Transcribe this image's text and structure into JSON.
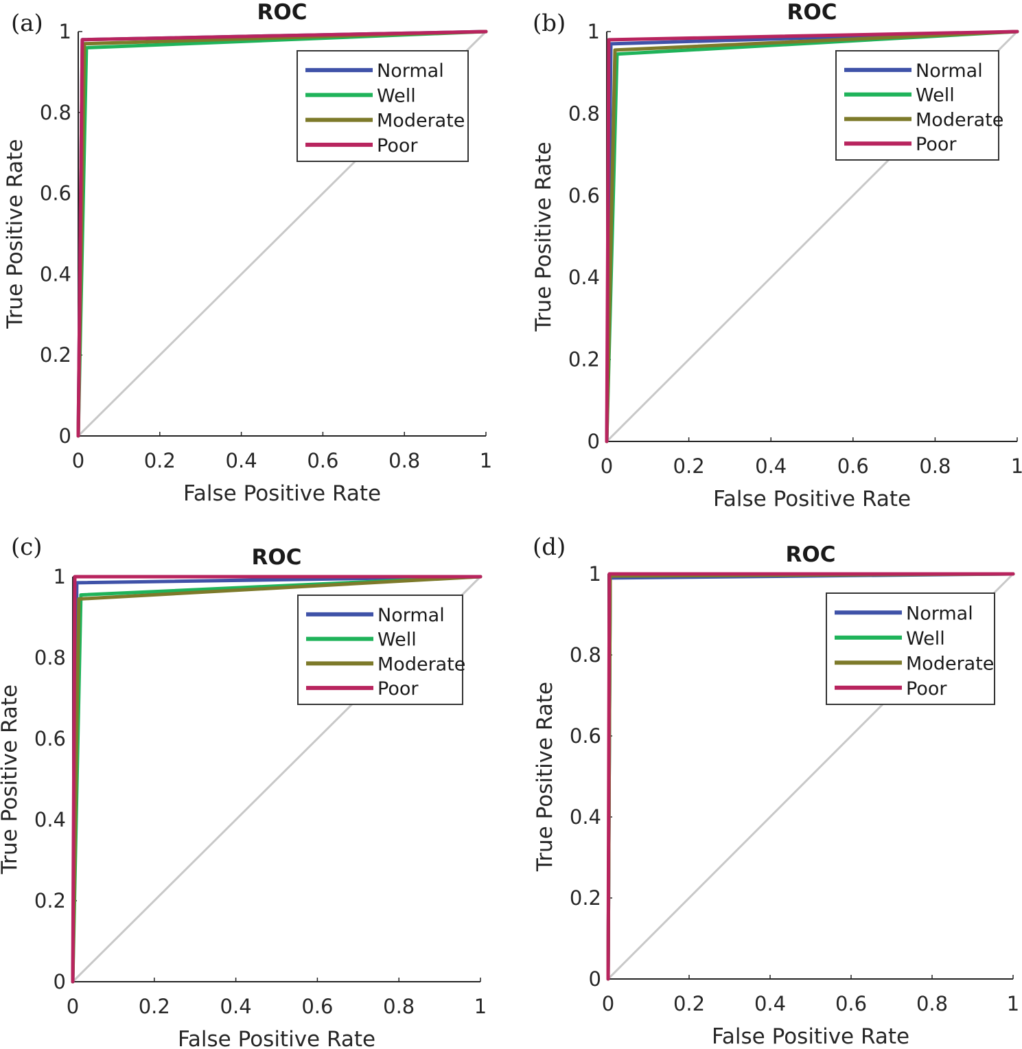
{
  "figure": {
    "colors": {
      "Normal": "#3f52a8",
      "Well": "#1fb35a",
      "Moderate": "#7d7a2a",
      "Poor": "#b8245e",
      "diagonal": "#c8c8c8",
      "axis": "#222222"
    }
  },
  "chart_data": [
    {
      "panel_label": "(a)",
      "type": "line",
      "title": "ROC",
      "xlabel": "False Positive Rate",
      "ylabel": "True Positive Rate",
      "xlim": [
        0,
        1
      ],
      "ylim": [
        0,
        1
      ],
      "xticks": [
        "0",
        "0.2",
        "0.4",
        "0.6",
        "0.8",
        "1"
      ],
      "yticks": [
        "0",
        "0.2",
        "0.4",
        "0.6",
        "0.8",
        "1"
      ],
      "legend_location": "top-right",
      "reference_line": {
        "x": [
          0,
          1
        ],
        "y": [
          0,
          1
        ]
      },
      "series": [
        {
          "name": "Normal",
          "x": [
            0,
            0.01,
            1
          ],
          "y": [
            0,
            0.98,
            1
          ]
        },
        {
          "name": "Well",
          "x": [
            0,
            0.02,
            1
          ],
          "y": [
            0,
            0.96,
            1
          ]
        },
        {
          "name": "Moderate",
          "x": [
            0,
            0.015,
            1
          ],
          "y": [
            0,
            0.97,
            1
          ]
        },
        {
          "name": "Poor",
          "x": [
            0,
            0.01,
            1
          ],
          "y": [
            0,
            0.98,
            1
          ]
        }
      ]
    },
    {
      "panel_label": "(b)",
      "type": "line",
      "title": "ROC",
      "xlabel": "False Positive Rate",
      "ylabel": "True Positive Rate",
      "xlim": [
        0,
        1
      ],
      "ylim": [
        0,
        1
      ],
      "xticks": [
        "0",
        "0.2",
        "0.4",
        "0.6",
        "0.8",
        "1"
      ],
      "yticks": [
        "0",
        "0.2",
        "0.4",
        "0.6",
        "0.8",
        "1"
      ],
      "legend_location": "top-right",
      "reference_line": {
        "x": [
          0,
          1
        ],
        "y": [
          0,
          1
        ]
      },
      "series": [
        {
          "name": "Normal",
          "x": [
            0,
            0.01,
            1
          ],
          "y": [
            0,
            0.97,
            1
          ]
        },
        {
          "name": "Well",
          "x": [
            0,
            0.025,
            1
          ],
          "y": [
            0,
            0.945,
            1
          ]
        },
        {
          "name": "Moderate",
          "x": [
            0,
            0.02,
            1
          ],
          "y": [
            0,
            0.955,
            1
          ]
        },
        {
          "name": "Poor",
          "x": [
            0,
            0.005,
            1
          ],
          "y": [
            0,
            0.98,
            1
          ]
        }
      ]
    },
    {
      "panel_label": "(c)",
      "type": "line",
      "title": "ROC",
      "xlabel": "False Positive Rate",
      "ylabel": "True Positive Rate",
      "xlim": [
        0,
        1
      ],
      "ylim": [
        0,
        1
      ],
      "xticks": [
        "0",
        "0.2",
        "0.4",
        "0.6",
        "0.8",
        "1"
      ],
      "yticks": [
        "0",
        "0.2",
        "0.4",
        "0.6",
        "0.8",
        "1"
      ],
      "legend_location": "top-right",
      "reference_line": {
        "x": [
          0,
          1
        ],
        "y": [
          0,
          1
        ]
      },
      "series": [
        {
          "name": "Normal",
          "x": [
            0,
            0.01,
            1
          ],
          "y": [
            0,
            0.985,
            1
          ]
        },
        {
          "name": "Well",
          "x": [
            0,
            0.02,
            1
          ],
          "y": [
            0,
            0.955,
            1
          ]
        },
        {
          "name": "Moderate",
          "x": [
            0,
            0.015,
            1
          ],
          "y": [
            0,
            0.945,
            1
          ]
        },
        {
          "name": "Poor",
          "x": [
            0,
            0.005,
            1
          ],
          "y": [
            0,
            1.0,
            1
          ]
        }
      ]
    },
    {
      "panel_label": "(d)",
      "type": "line",
      "title": "ROC",
      "xlabel": "False Positive Rate",
      "ylabel": "True Positive Rate",
      "xlim": [
        0,
        1
      ],
      "ylim": [
        0,
        1
      ],
      "xticks": [
        "0",
        "0.2",
        "0.4",
        "0.6",
        "0.8",
        "1"
      ],
      "yticks": [
        "0",
        "0.2",
        "0.4",
        "0.6",
        "0.8",
        "1"
      ],
      "legend_location": "top-right",
      "reference_line": {
        "x": [
          0,
          1
        ],
        "y": [
          0,
          1
        ]
      },
      "series": [
        {
          "name": "Normal",
          "x": [
            0,
            0.005,
            1
          ],
          "y": [
            0,
            0.99,
            1
          ]
        },
        {
          "name": "Well",
          "x": [
            0,
            0.005,
            1
          ],
          "y": [
            0,
            0.995,
            1
          ]
        },
        {
          "name": "Moderate",
          "x": [
            0,
            0.005,
            1
          ],
          "y": [
            0,
            0.995,
            1
          ]
        },
        {
          "name": "Poor",
          "x": [
            0,
            0.003,
            1
          ],
          "y": [
            0,
            1.0,
            1
          ]
        }
      ]
    }
  ]
}
